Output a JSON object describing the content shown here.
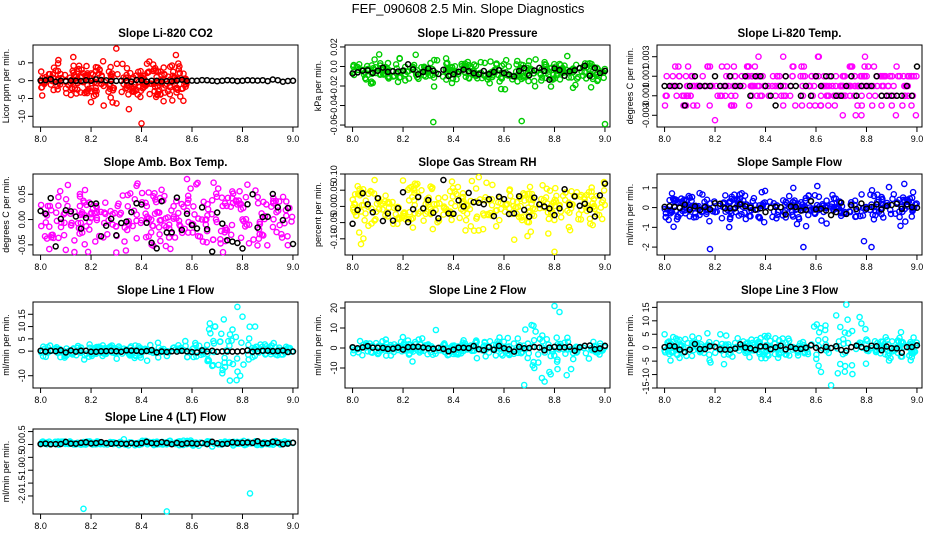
{
  "title": "FEF_090608  2.5 Min. Slope Diagnostics",
  "chart_data": [
    {
      "type": "scatter",
      "title": "Slope Li-820 CO2",
      "ylabel": "Licor ppm per min.",
      "color": "#ff0000",
      "xlim": [
        7.97,
        9.02
      ],
      "xticks": [
        "8.0",
        "8.2",
        "8.4",
        "8.6",
        "8.8",
        "9.0"
      ],
      "ylim": [
        -13,
        10
      ],
      "yticks": [
        "-10",
        "-5",
        "0",
        "5"
      ],
      "scatter": {
        "mean": 0,
        "sd": 1.2,
        "n": 260,
        "x_range": [
          8.0,
          8.58
        ],
        "bursts": [
          [
            8.05,
            8.58,
            2.5
          ]
        ]
      },
      "outliers": [
        [
          8.3,
          9
        ],
        [
          8.4,
          -12
        ],
        [
          8.25,
          -7
        ],
        [
          8.35,
          -8
        ],
        [
          8.12,
          -4
        ],
        [
          8.55,
          4
        ]
      ],
      "black_series": {
        "mean": 0,
        "sd": 0.15
      }
    },
    {
      "type": "scatter",
      "title": "Slope Li-820 Pressure",
      "ylabel": "kPa per min.",
      "color": "#00cc00",
      "xlim": [
        7.97,
        9.02
      ],
      "xticks": [
        "8.0",
        "8.2",
        "8.4",
        "8.6",
        "8.8",
        "9.0"
      ],
      "ylim": [
        -0.062,
        0.022
      ],
      "yticks": [
        "-0.06",
        "-0.04",
        "-0.02",
        "0.0",
        "0.02"
      ],
      "scatter": {
        "mean": -0.006,
        "sd": 0.006,
        "n": 300,
        "x_range": [
          8.0,
          9.0
        ],
        "bursts": []
      },
      "outliers": [
        [
          8.32,
          -0.057
        ],
        [
          8.67,
          -0.056
        ],
        [
          9.0,
          -0.059
        ],
        [
          8.72,
          -0.015
        ],
        [
          8.25,
          0.012
        ]
      ],
      "black_series": {
        "mean": -0.005,
        "sd": 0.003
      }
    },
    {
      "type": "scatter",
      "title": "Slope Li-820 Temp.",
      "ylabel": "degrees C per min.",
      "color": "#ff00ff",
      "xlim": [
        7.97,
        9.02
      ],
      "xticks": [
        "8.0",
        "8.2",
        "8.4",
        "8.6",
        "8.8",
        "9.0"
      ],
      "ylim": [
        -0.0042,
        0.0042
      ],
      "yticks": [
        "-0.003",
        "-0.001",
        "0.001",
        "0.003"
      ],
      "scatter": {
        "mean": 0,
        "sd": 0.0012,
        "n": 280,
        "x_range": [
          8.0,
          9.0
        ],
        "bursts": [],
        "quantum": 0.001
      },
      "outliers": [
        [
          8.4,
          0.004
        ],
        [
          8.36,
          -0.004
        ],
        [
          8.96,
          -0.004
        ],
        [
          8.2,
          -0.0035
        ],
        [
          8.47,
          0.003
        ]
      ],
      "black_series": {
        "mean": 0,
        "sd": 0.0008,
        "quantum": 0.001
      }
    },
    {
      "type": "scatter",
      "title": "Slope Amb. Box Temp.",
      "ylabel": "degrees C per min.",
      "color": "#ff00ff",
      "xlim": [
        7.97,
        9.02
      ],
      "xticks": [
        "8.0",
        "8.2",
        "8.4",
        "8.6",
        "8.8",
        "9.0"
      ],
      "ylim": [
        -0.07,
        0.09
      ],
      "yticks": [
        "-0.05",
        "0.00",
        "0.05"
      ],
      "scatter": {
        "mean": 0,
        "sd": 0.032,
        "n": 300,
        "x_range": [
          8.0,
          9.0
        ],
        "bursts": []
      },
      "outliers": [
        [
          8.58,
          0.08
        ],
        [
          8.1,
          -0.06
        ],
        [
          8.3,
          -0.065
        ]
      ],
      "black_series": {
        "mean": 0,
        "sd": 0.03
      }
    },
    {
      "type": "scatter",
      "title": "Slope Gas Stream RH",
      "ylabel": "percent per min.",
      "color": "#ffff00",
      "xlim": [
        7.97,
        9.02
      ],
      "xticks": [
        "8.0",
        "8.2",
        "8.4",
        "8.6",
        "8.8",
        "9.0"
      ],
      "ylim": [
        -0.15,
        0.1
      ],
      "yticks": [
        "-0.10",
        "-0.05",
        "0.00",
        "0.05",
        "0.10"
      ],
      "scatter": {
        "mean": 0,
        "sd": 0.035,
        "n": 320,
        "x_range": [
          8.0,
          9.0
        ],
        "bursts": []
      },
      "outliers": [
        [
          8.8,
          -0.14
        ],
        [
          8.5,
          0.09
        ],
        [
          8.2,
          0.08
        ]
      ],
      "black_series": {
        "mean": 0,
        "sd": 0.03
      }
    },
    {
      "type": "scatter",
      "title": "Slope Sample Flow",
      "ylabel": "ml/min per min.",
      "color": "#0000ff",
      "xlim": [
        7.97,
        9.02
      ],
      "xticks": [
        "8.0",
        "8.2",
        "8.4",
        "8.6",
        "8.8",
        "9.0"
      ],
      "ylim": [
        -2.4,
        1.7
      ],
      "yticks": [
        "-2",
        "-1",
        "0",
        "1"
      ],
      "scatter": {
        "mean": 0,
        "sd": 0.4,
        "n": 320,
        "x_range": [
          8.0,
          9.0
        ],
        "bursts": []
      },
      "outliers": [
        [
          8.83,
          1.6
        ],
        [
          8.95,
          1.2
        ],
        [
          8.18,
          -2.1
        ],
        [
          8.82,
          -2.0
        ],
        [
          8.79,
          -1.7
        ],
        [
          8.84,
          -2.3
        ],
        [
          8.55,
          -2.0
        ]
      ],
      "black_series": {
        "mean": 0,
        "sd": 0.15
      }
    },
    {
      "type": "scatter",
      "title": "Slope Line 1 Flow",
      "ylabel": "ml/min per min.",
      "color": "#00ffff",
      "xlim": [
        7.97,
        9.02
      ],
      "xticks": [
        "8.0",
        "8.2",
        "8.4",
        "8.6",
        "8.8",
        "9.0"
      ],
      "ylim": [
        -15,
        20
      ],
      "yticks": [
        "-10",
        "0",
        "5",
        "10",
        "15"
      ],
      "scatter": {
        "mean": 0,
        "sd": 1.3,
        "n": 300,
        "x_range": [
          8.0,
          9.0
        ],
        "bursts": [
          [
            8.65,
            8.85,
            7
          ]
        ]
      },
      "outliers": [
        [
          8.78,
          18
        ],
        [
          8.8,
          14
        ],
        [
          8.72,
          -9
        ],
        [
          8.75,
          -12
        ],
        [
          8.68,
          -6
        ],
        [
          8.85,
          10
        ]
      ],
      "black_series": {
        "mean": 0,
        "sd": 0.3
      }
    },
    {
      "type": "scatter",
      "title": "Slope Line 2 Flow",
      "ylabel": "ml/min per min.",
      "color": "#00ffff",
      "xlim": [
        7.97,
        9.02
      ],
      "xticks": [
        "8.0",
        "8.2",
        "8.4",
        "8.6",
        "8.8",
        "9.0"
      ],
      "ylim": [
        -20,
        23
      ],
      "yticks": [
        "-10",
        "0",
        "10",
        "20"
      ],
      "scatter": {
        "mean": 0,
        "sd": 2,
        "n": 300,
        "x_range": [
          8.0,
          9.0
        ],
        "bursts": [
          [
            8.68,
            8.88,
            8
          ]
        ]
      },
      "outliers": [
        [
          8.8,
          21
        ],
        [
          8.82,
          18
        ],
        [
          8.75,
          -15
        ],
        [
          8.78,
          -12
        ],
        [
          8.72,
          -10
        ],
        [
          8.33,
          9
        ]
      ],
      "black_series": {
        "mean": 0,
        "sd": 0.6
      }
    },
    {
      "type": "scatter",
      "title": "Slope Line 3 Flow",
      "ylabel": "ml/min per min.",
      "color": "#00ffff",
      "xlim": [
        7.97,
        9.02
      ],
      "xticks": [
        "8.0",
        "8.2",
        "8.4",
        "8.6",
        "8.8",
        "9.0"
      ],
      "ylim": [
        -15,
        17
      ],
      "yticks": [
        "-15",
        "-10",
        "-5",
        "0",
        "5",
        "10",
        "15"
      ],
      "scatter": {
        "mean": 0,
        "sd": 2.2,
        "n": 300,
        "x_range": [
          8.0,
          9.0
        ],
        "bursts": [
          [
            8.6,
            8.8,
            6
          ]
        ]
      },
      "outliers": [
        [
          8.72,
          16
        ],
        [
          8.68,
          12
        ],
        [
          8.66,
          -14
        ],
        [
          8.62,
          -9
        ],
        [
          8.78,
          9
        ],
        [
          8.0,
          5
        ]
      ],
      "black_series": {
        "mean": 0,
        "sd": 0.8
      }
    },
    {
      "type": "scatter",
      "title": "Slope Line 4 (LT) Flow",
      "ylabel": "ml/min per min.",
      "color": "#00ffff",
      "xlim": [
        7.97,
        9.02
      ],
      "xticks": [
        "8.0",
        "8.2",
        "8.4",
        "8.6",
        "8.8",
        "9.0"
      ],
      "ylim": [
        -2.7,
        0.6
      ],
      "yticks": [
        "-2.0",
        "-1.5",
        "-1.0",
        "-0.5",
        "0.0",
        "0.5"
      ],
      "scatter": {
        "mean": 0.05,
        "sd": 0.04,
        "n": 280,
        "x_range": [
          8.0,
          9.0
        ],
        "bursts": []
      },
      "outliers": [
        [
          8.17,
          -2.5
        ],
        [
          8.5,
          -2.6
        ],
        [
          8.83,
          -1.9
        ],
        [
          8.68,
          -0.08
        ],
        [
          8.33,
          0.2
        ]
      ],
      "black_series": {
        "mean": 0.05,
        "sd": 0.03
      }
    }
  ]
}
